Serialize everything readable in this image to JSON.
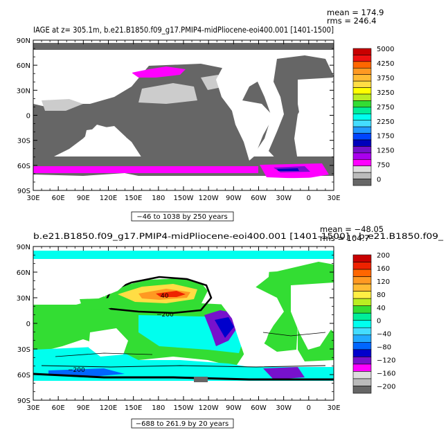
{
  "chart_data": [
    {
      "type": "heatmap",
      "title": "IAGE at z= 305.1m, b.e21.B1850.f09_g17.PMIP4-midPliocene-eoi400.001 [1401-1500]",
      "stats": {
        "mean": "mean = 174.9",
        "rms": "rms = 246.4"
      },
      "contour_info": "−46 to 1038 by 250 years",
      "x_ticks": [
        "30E",
        "60E",
        "90E",
        "120E",
        "150E",
        "180",
        "150W",
        "120W",
        "90W",
        "60W",
        "30W",
        "0",
        "30E"
      ],
      "y_ticks": [
        "90N",
        "60N",
        "30N",
        "0",
        "30S",
        "60S",
        "90S"
      ],
      "ylim": [
        -90,
        90
      ],
      "colorbar": {
        "labels": [
          "5000",
          "4250",
          "3750",
          "3250",
          "2750",
          "2250",
          "1750",
          "1250",
          "750",
          "0"
        ],
        "colors": [
          "#c80000",
          "#ee1111",
          "#ff6600",
          "#ff9922",
          "#ffbb33",
          "#ffdd44",
          "#ffff00",
          "#bbee22",
          "#33dd33",
          "#00ee99",
          "#00ffee",
          "#44ddff",
          "#2299ff",
          "#0044ff",
          "#0000bb",
          "#7711cc",
          "#aa00ee",
          "#ff00ff",
          "#dddddd",
          "#bbbbbb",
          "#666666"
        ]
      }
    },
    {
      "type": "heatmap",
      "title": "b.e21.B1850.f09_g17.PMIP4-midPliocene-eoi400.001 [1401-1500] - b.e21.B1850.f09_",
      "stats": {
        "mean": "mean = −48.05",
        "rms": "rms = 104.7"
      },
      "contour_info": "−688 to 261.9 by 20 years",
      "x_ticks": [
        "30E",
        "60E",
        "90E",
        "120E",
        "150E",
        "180",
        "150W",
        "120W",
        "90W",
        "60W",
        "30W",
        "0",
        "30E"
      ],
      "y_ticks": [
        "90N",
        "60N",
        "30N",
        "0",
        "30S",
        "60S",
        "90S"
      ],
      "ylim": [
        -90,
        90
      ],
      "colorbar": {
        "labels": [
          "200",
          "160",
          "120",
          "80",
          "40",
          "0",
          "−40",
          "−80",
          "−120",
          "−160",
          "−200"
        ],
        "colors": [
          "#c80000",
          "#ee2200",
          "#ff6600",
          "#ff9922",
          "#ffbb33",
          "#ffee44",
          "#bbee22",
          "#33dd33",
          "#00ee99",
          "#00ffee",
          "#44ddff",
          "#22aaff",
          "#0066ff",
          "#0000cc",
          "#7711cc",
          "#ff00ff",
          "#dddddd",
          "#bbbbbb",
          "#666666"
        ]
      }
    }
  ],
  "contour_labels": [
    "40",
    "−200",
    "−200"
  ]
}
